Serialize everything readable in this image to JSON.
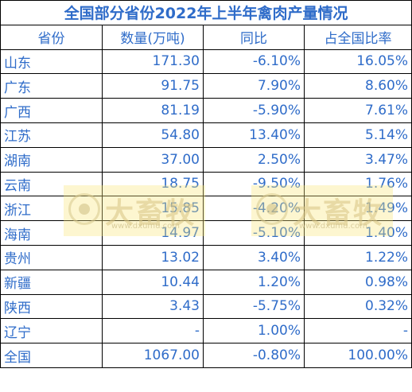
{
  "title": "全国部分省份2022年上半年禽肉产量情况",
  "headers": [
    "省份",
    "数量(万吨)",
    "同比",
    "占全国比率"
  ],
  "rows": [
    {
      "province": "山东",
      "amount": "171.30",
      "yoy": "-6.10%",
      "share": "16.05%"
    },
    {
      "province": "广东",
      "amount": "91.75",
      "yoy": "7.90%",
      "share": "8.60%"
    },
    {
      "province": "广西",
      "amount": "81.19",
      "yoy": "-5.90%",
      "share": "7.61%"
    },
    {
      "province": "江苏",
      "amount": "54.80",
      "yoy": "13.40%",
      "share": "5.14%"
    },
    {
      "province": "湖南",
      "amount": "37.00",
      "yoy": "2.50%",
      "share": "3.47%"
    },
    {
      "province": "云南",
      "amount": "18.75",
      "yoy": "-9.50%",
      "share": "1.76%"
    },
    {
      "province": "浙江",
      "amount": "15.85",
      "yoy": "-4.20%",
      "share": "1.49%"
    },
    {
      "province": "海南",
      "amount": "14.97",
      "yoy": "-5.10%",
      "share": "1.40%"
    },
    {
      "province": "贵州",
      "amount": "13.02",
      "yoy": "3.40%",
      "share": "1.22%"
    },
    {
      "province": "新疆",
      "amount": "10.44",
      "yoy": "1.20%",
      "share": "0.98%"
    },
    {
      "province": "陕西",
      "amount": "3.43",
      "yoy": "-5.75%",
      "share": "0.32%"
    },
    {
      "province": "辽宁",
      "amount": "-",
      "yoy": "1.00%",
      "share": "-"
    },
    {
      "province": "全国",
      "amount": "1067.00",
      "yoy": "-0.80%",
      "share": "100.00%"
    }
  ],
  "watermark": {
    "text": "大畜牧",
    "url": "www.dxumu.com"
  },
  "colors": {
    "text": "#2f6cc9",
    "border": "#000000",
    "watermark_bg": "#f8e678"
  }
}
